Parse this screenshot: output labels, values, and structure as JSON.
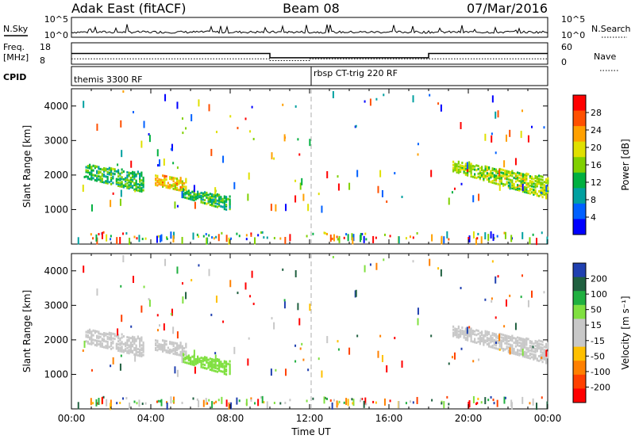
{
  "header": {
    "radar": "Adak East (fitACF)",
    "beam": "Beam 08",
    "date": "07/Mar/2016"
  },
  "noise_panel": {
    "left_label": "N.Sky",
    "right_label": "N.Search",
    "left_ticks": [
      "10^5",
      "10^0"
    ],
    "right_ticks": [
      "10^5",
      "10^0"
    ]
  },
  "freq_panel": {
    "left_label_1": "Freq.",
    "left_label_2": "[MHz]",
    "left_ticks": [
      "18",
      "8"
    ],
    "right_label": "Nave",
    "right_ticks": [
      "60",
      "0"
    ]
  },
  "cpid_panel": {
    "label": "CPID",
    "modes": [
      {
        "text": "themis 3300 RF",
        "start_hour": 0
      },
      {
        "text": "rbsp CT-trig 220 RF",
        "start_hour": 12
      }
    ]
  },
  "x_axis": {
    "label": "Time UT",
    "ticks": [
      "00:00",
      "04:00",
      "08:00",
      "12:00",
      "16:00",
      "20:00",
      "00:00"
    ]
  },
  "power_panel": {
    "ylabel": "Slant Range [km]",
    "yticks": [
      "1000",
      "2000",
      "3000",
      "4000"
    ],
    "colorbar_label": "Power [dB]",
    "colorbar_ticks": [
      "28",
      "24",
      "20",
      "16",
      "12",
      "8",
      "4"
    ]
  },
  "velocity_panel": {
    "ylabel": "Slant Range [km]",
    "yticks": [
      "1000",
      "2000",
      "3000",
      "4000"
    ],
    "colorbar_label": "Velocity [m s⁻¹]",
    "colorbar_ticks": [
      "200",
      "100",
      "50",
      "15",
      "-15",
      "-50",
      "-100",
      "-200"
    ]
  },
  "chart_data": {
    "type": "heatmap",
    "title": "Adak East (fitACF) Beam 08 07/Mar/2016",
    "x_unit": "hour UT",
    "xlim": [
      0,
      24
    ],
    "ylim": [
      0,
      4500
    ],
    "frequency": {
      "ylim": [
        8,
        18
      ],
      "segments": [
        {
          "start": 0,
          "end": 10,
          "value": 13
        },
        {
          "start": 10,
          "end": 18,
          "value": 11
        },
        {
          "start": 18,
          "end": 24,
          "value": 13
        }
      ]
    },
    "nave": {
      "ylim": [
        0,
        60
      ],
      "segments": [
        {
          "start": 0,
          "end": 10,
          "value": 15
        },
        {
          "start": 10,
          "end": 12,
          "value": 10
        },
        {
          "start": 12,
          "end": 18,
          "value": 15
        },
        {
          "start": 18,
          "end": 24,
          "value": 15
        }
      ]
    },
    "echo_regions": [
      {
        "name": "early-evening",
        "t0": 0.7,
        "t1": 3.6,
        "r_top": 2300,
        "r_bottom_start": 1900,
        "r_bottom_end": 1500,
        "power": 12,
        "velocity": 0
      },
      {
        "name": "bright-patch",
        "t0": 4.2,
        "t1": 5.8,
        "r_top": 2000,
        "r_bottom_start": 1700,
        "r_bottom_end": 1500,
        "power": 20,
        "velocity": 0
      },
      {
        "name": "descending-band",
        "t0": 5.6,
        "t1": 8.0,
        "r_top": 1600,
        "r_bottom_start": 1350,
        "r_bottom_end": 950,
        "power": 12,
        "velocity": 70
      },
      {
        "name": "late-patch",
        "t0": 19.2,
        "t1": 24.0,
        "r_top": 2400,
        "r_bottom_start": 2100,
        "r_bottom_end": 1300,
        "power": 16,
        "velocity": 0
      }
    ],
    "power_colorbar": {
      "range": [
        0,
        30
      ],
      "colors": [
        "#0000ff",
        "#0060ff",
        "#00a0a0",
        "#00b040",
        "#80d000",
        "#e0e000",
        "#ffa000",
        "#ff5000",
        "#ff0000"
      ]
    },
    "velocity_colorbar": {
      "range": [
        -250,
        250
      ],
      "colors": [
        "#ff0000",
        "#ff4000",
        "#ff8000",
        "#ffc000",
        "#c8c8c8",
        "#c8c8c8",
        "#80e040",
        "#20b040",
        "#206040",
        "#2040b0"
      ]
    }
  }
}
